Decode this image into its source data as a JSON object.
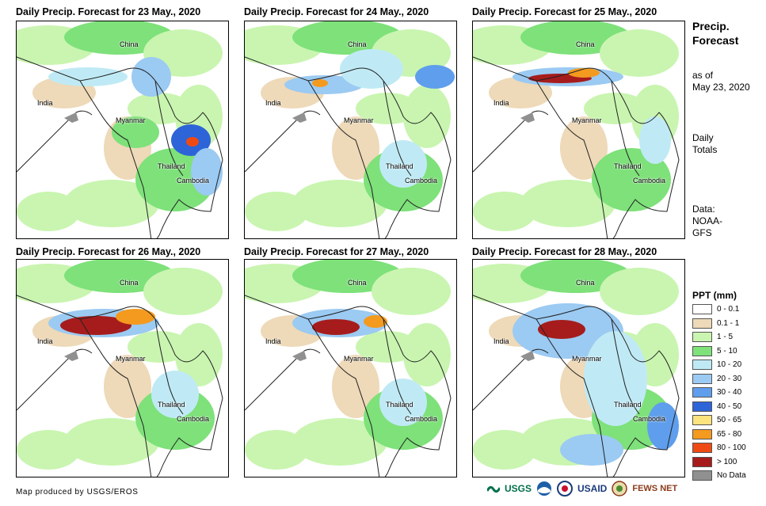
{
  "panels": [
    {
      "title": "Daily Precip. Forecast for 23 May., 2020"
    },
    {
      "title": "Daily Precip. Forecast for 24 May., 2020"
    },
    {
      "title": "Daily Precip. Forecast for 25 May., 2020"
    },
    {
      "title": "Daily Precip. Forecast for 26 May., 2020"
    },
    {
      "title": "Daily Precip. Forecast for 27 May., 2020"
    },
    {
      "title": "Daily Precip. Forecast for 28 May., 2020"
    }
  ],
  "map_labels": {
    "china": "China",
    "india": "India",
    "myanmar": "Myanmar",
    "thailand": "Thailand",
    "cambodia": "Cambodia"
  },
  "sidebar": {
    "title_line1": "Precip.",
    "title_line2": "Forecast",
    "asof_line1": "as of",
    "asof_line2": "May 23, 2020",
    "daily_line1": "Daily",
    "daily_line2": "Totals",
    "data_line1": "Data:",
    "data_line2": "NOAA-",
    "data_line3": "GFS"
  },
  "legend": {
    "title": "PPT (mm)",
    "items": [
      {
        "label": "0 - 0.1",
        "color": "#ffffff"
      },
      {
        "label": "0.1 - 1",
        "color": "#eed9b8"
      },
      {
        "label": "1 - 5",
        "color": "#c9f5b0"
      },
      {
        "label": "5 - 10",
        "color": "#7ee17a"
      },
      {
        "label": "10 - 20",
        "color": "#bfeaf5"
      },
      {
        "label": "20 - 30",
        "color": "#9bcaf2"
      },
      {
        "label": "30 - 40",
        "color": "#5f9eec"
      },
      {
        "label": "40 - 50",
        "color": "#2d64d8"
      },
      {
        "label": "50 - 65",
        "color": "#fbe37d"
      },
      {
        "label": "65 - 80",
        "color": "#f39a1f"
      },
      {
        "label": "80 - 100",
        "color": "#f04a14"
      },
      {
        "label": "> 100",
        "color": "#a61c1c"
      },
      {
        "label": "No Data",
        "color": "#909090"
      }
    ]
  },
  "footer": {
    "credit": "Map produced by USGS/EROS"
  },
  "logos": {
    "usgs": "USGS",
    "usaid": "USAID",
    "fewsnet": "FEWS NET"
  }
}
